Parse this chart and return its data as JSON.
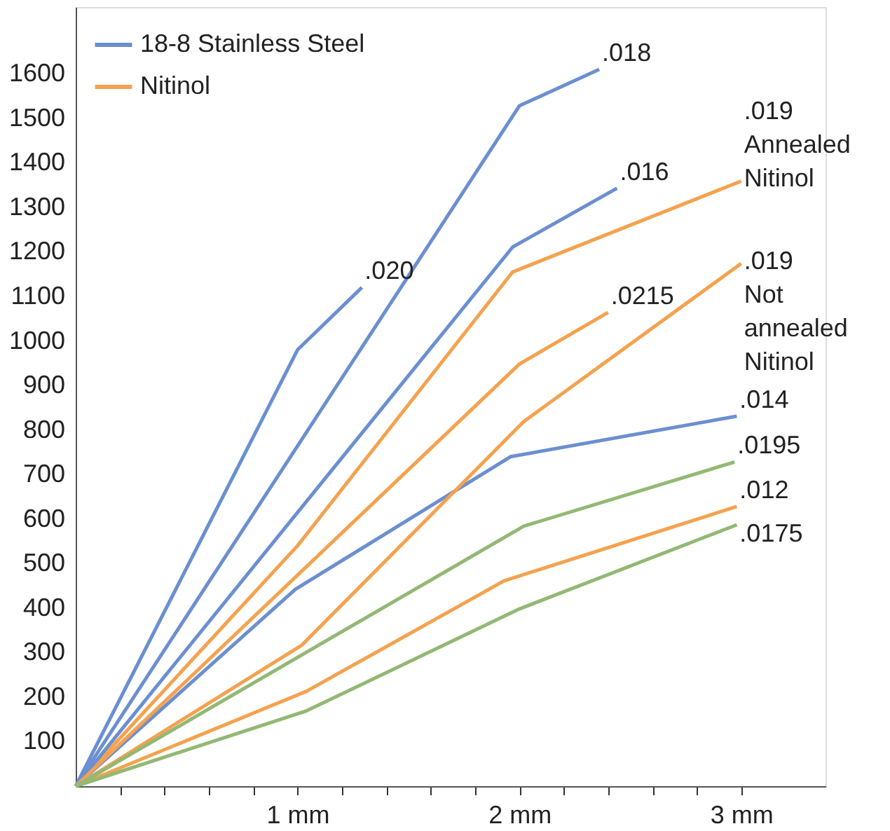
{
  "chart_data": {
    "type": "line",
    "series": [
      {
        "name": "18-8 Stainless Steel",
        "color": "#6b8fd0",
        "x": [
          0,
          1.0,
          1.29
        ],
        "values": [
          0,
          980,
          1120
        ]
      },
      {
        "color": "#6b8fd0",
        "x": [
          0,
          2.0,
          2.36
        ],
        "values": [
          0,
          1528,
          1610
        ]
      },
      {
        "color": "#6b8fd0",
        "x": [
          0,
          1.97,
          2.44
        ],
        "values": [
          0,
          1211,
          1343
        ]
      },
      {
        "color": "#6b8fd0",
        "x": [
          0,
          0.99,
          1.96,
          2.98
        ],
        "values": [
          0,
          442,
          740,
          831
        ]
      },
      {
        "name": "Nitinol",
        "color": "#f4a24f",
        "x": [
          0,
          1.0,
          1.97,
          3.0
        ],
        "values": [
          0,
          540,
          1155,
          1359
        ]
      },
      {
        "color": "#f4a24f",
        "x": [
          0,
          2.0,
          2.4
        ],
        "values": [
          0,
          948,
          1064
        ]
      },
      {
        "color": "#f4a24f",
        "x": [
          0,
          1.02,
          2.02,
          3.0
        ],
        "values": [
          0,
          317,
          819,
          1174
        ]
      },
      {
        "color": "#f4a24f",
        "x": [
          0,
          1.04,
          1.93,
          2.98
        ],
        "values": [
          0,
          213,
          461,
          628
        ]
      },
      {
        "color": "#93b874",
        "x": [
          0,
          2.02,
          2.97
        ],
        "values": [
          0,
          584,
          728
        ]
      },
      {
        "color": "#93b874",
        "x": [
          0,
          1.04,
          2.0,
          2.98
        ],
        "values": [
          0,
          169,
          398,
          587
        ]
      }
    ],
    "annotations": [
      {
        "text": ".020",
        "x": 1.29,
        "y": 1120
      },
      {
        "text": ".018",
        "x": 2.36,
        "y": 1610
      },
      {
        "text": ".016",
        "x": 2.44,
        "y": 1343
      },
      {
        "text": ".014",
        "x": 2.98,
        "y": 831
      },
      {
        "text": ".019",
        "x": 3.0,
        "y": 1359
      },
      "Annealed",
      "Nitinol",
      {
        "text": ".0215",
        "x": 2.4,
        "y": 1064
      },
      {
        "text": ".019",
        "x": 3.0,
        "y": 1174
      },
      "Not",
      "annealed",
      "Nitinol",
      {
        "text": ".012",
        "x": 2.98,
        "y": 628
      },
      {
        "text": ".0195",
        "x": 2.97,
        "y": 728
      },
      {
        "text": ".0175",
        "x": 2.98,
        "y": 587
      }
    ],
    "xlim": [
      0,
      3.38
    ],
    "xticks": [
      {
        "value": 0.2,
        "label": null
      },
      {
        "value": 0.4,
        "label": null
      },
      {
        "value": 0.6,
        "label": null
      },
      {
        "value": 0.8,
        "label": null
      },
      {
        "value": 1,
        "label": "1 mm"
      },
      {
        "value": 1.2,
        "label": null
      },
      {
        "value": 1.4,
        "label": null
      },
      {
        "value": 1.6,
        "label": null
      },
      {
        "value": 1.8,
        "label": null
      },
      {
        "value": 2,
        "label": "2 mm"
      },
      {
        "value": 2.2,
        "label": null
      },
      {
        "value": 2.4,
        "label": null
      },
      {
        "value": 2.6,
        "label": null
      },
      {
        "value": 2.8,
        "label": null
      },
      {
        "value": 3,
        "label": "3 mm"
      }
    ],
    "ylim": [
      0,
      1750
    ],
    "yticks": [
      100,
      200,
      300,
      400,
      500,
      600,
      700,
      800,
      900,
      1000,
      1100,
      1200,
      1300,
      1400,
      1500,
      1600
    ],
    "grid": false,
    "legend": "top left",
    "marker": "none",
    "line_style": "solid"
  }
}
